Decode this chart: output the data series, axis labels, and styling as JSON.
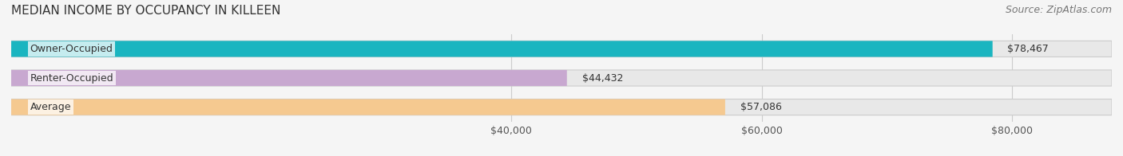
{
  "title": "MEDIAN INCOME BY OCCUPANCY IN KILLEEN",
  "source": "Source: ZipAtlas.com",
  "categories": [
    "Owner-Occupied",
    "Renter-Occupied",
    "Average"
  ],
  "values": [
    78467,
    44432,
    57086
  ],
  "labels": [
    "$78,467",
    "$44,432",
    "$57,086"
  ],
  "bar_colors": [
    "#1ab5c0",
    "#c8a8d0",
    "#f5c990"
  ],
  "bar_edge_colors": [
    "#1ab5c0",
    "#c8a8d0",
    "#f5c990"
  ],
  "background_color": "#f5f5f5",
  "bar_bg_color": "#e8e8e8",
  "xmin": 0,
  "xmax": 88000,
  "xticks": [
    40000,
    60000,
    80000
  ],
  "xticklabels": [
    "$40,000",
    "$60,000",
    "$80,000"
  ],
  "title_fontsize": 11,
  "source_fontsize": 9,
  "label_fontsize": 9,
  "tick_fontsize": 9,
  "bar_height": 0.55
}
